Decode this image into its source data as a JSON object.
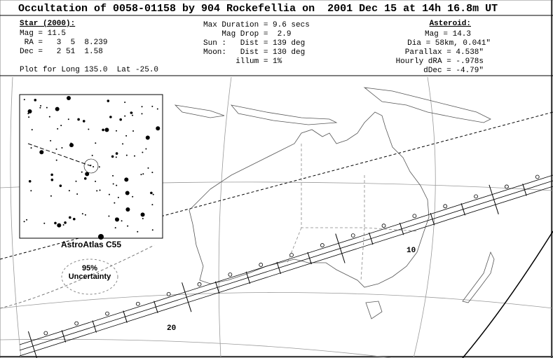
{
  "header": {
    "title": "Occultation of 0058-01158 by 904 Rockefellia on  2001 Dec 15 at 14h 16.8m UT"
  },
  "star": {
    "heading": "Star (2000):",
    "lines": [
      "Mag = 11.5",
      " RA =   3  5  8.239",
      "Dec =   2 51  1.58"
    ],
    "plot_for": "Plot for Long 135.0  Lat -25.0"
  },
  "event": {
    "lines": [
      "Max Duration = 9.6 secs",
      "    Mag Drop =  2.9",
      "Sun :   Dist = 139 deg",
      "Moon:   Dist = 130 deg",
      "       illum = 1%"
    ]
  },
  "asteroid": {
    "heading": "Asteroid:",
    "lines": [
      "Mag = 14.3",
      "Dia = 58km, 0.041\"",
      "Parallax = 4.538\"",
      "Hourly dRA = -.978s",
      "dDec = -4.79\""
    ]
  },
  "map": {
    "star_chart_label": "AstroAtlas C55",
    "uncertainty_percent": "95%",
    "uncertainty_label": "Uncertainty",
    "path_labels": [
      "10",
      "20"
    ]
  }
}
